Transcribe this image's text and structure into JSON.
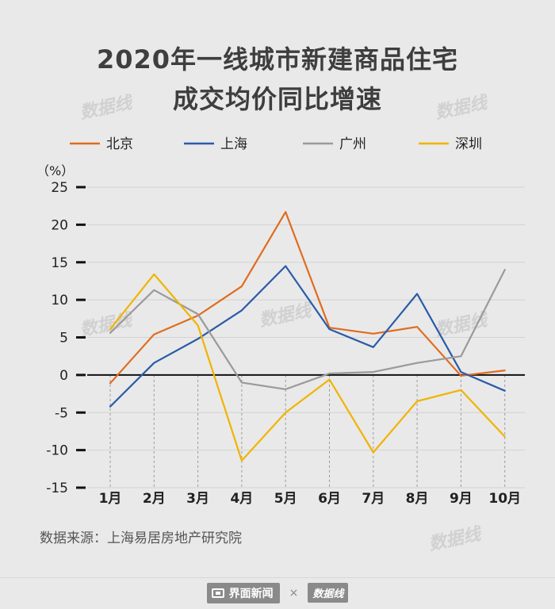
{
  "title_line1": "2020年一线城市新建商品住宅",
  "title_line2": "成交均价同比增速",
  "source": "数据来源：上海易居房地产研究院",
  "footer": {
    "brand": "界面新闻",
    "separator": "×",
    "partner": "数据线"
  },
  "watermark": "数据线",
  "chart_data": {
    "type": "line",
    "title": "2020年一线城市新建商品住宅成交均价同比增速",
    "ylabel": "（%）",
    "xlabel": "",
    "ylim": [
      -15,
      25
    ],
    "yticks": [
      25,
      20,
      15,
      10,
      5,
      0,
      -5,
      -10,
      -15
    ],
    "categories": [
      "1月",
      "2月",
      "3月",
      "4月",
      "5月",
      "6月",
      "7月",
      "8月",
      "9月",
      "10月"
    ],
    "legend_position": "top",
    "series": [
      {
        "name": "北京",
        "color": "#e06c1e",
        "values": [
          -1.1,
          5.4,
          7.9,
          11.8,
          21.7,
          6.3,
          5.5,
          6.4,
          -0.1,
          0.6
        ]
      },
      {
        "name": "上海",
        "color": "#2a5ba8",
        "values": [
          -4.2,
          1.6,
          4.8,
          8.6,
          14.5,
          6.1,
          3.7,
          10.8,
          0.4,
          -2.1
        ]
      },
      {
        "name": "广州",
        "color": "#9a9a9a",
        "values": [
          5.6,
          11.3,
          8.1,
          -1.0,
          -1.9,
          0.2,
          0.4,
          1.6,
          2.5,
          14.0
        ]
      },
      {
        "name": "深圳",
        "color": "#f0b400",
        "values": [
          6.1,
          13.4,
          6.6,
          -11.4,
          -5.0,
          -0.6,
          -10.3,
          -3.5,
          -2.0,
          -8.2
        ]
      }
    ]
  }
}
